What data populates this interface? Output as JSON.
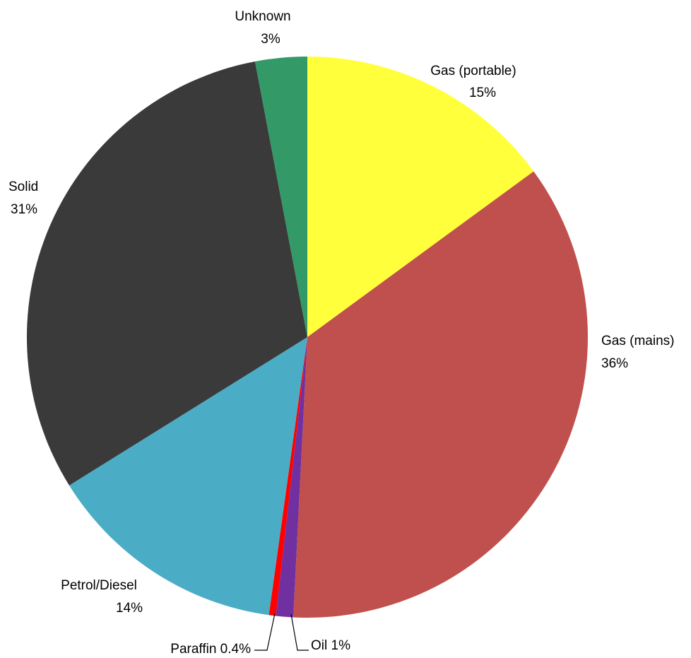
{
  "chart_data": {
    "type": "pie",
    "title": "",
    "slices": [
      {
        "name": "Gas (portable)",
        "value": 15,
        "label": "15%",
        "color": "#ffff3c"
      },
      {
        "name": "Gas (mains)",
        "value": 36,
        "label": "36%",
        "color": "#c0504d"
      },
      {
        "name": "Oil",
        "value": 1,
        "label": "Oil 1%",
        "color": "#7030a0"
      },
      {
        "name": "Paraffin",
        "value": 0.4,
        "label": "Paraffin 0.4%",
        "color": "#ff0000"
      },
      {
        "name": "Petrol/Diesel",
        "value": 14,
        "label": "14%",
        "color": "#4bacc6"
      },
      {
        "name": "Solid",
        "value": 31,
        "label": "31%",
        "color": "#3a3a3a"
      },
      {
        "name": "Unknown",
        "value": 3,
        "label": "3%",
        "color": "#339966"
      }
    ],
    "start_angle": "12 o'clock",
    "direction": "clockwise",
    "legend": "none"
  }
}
